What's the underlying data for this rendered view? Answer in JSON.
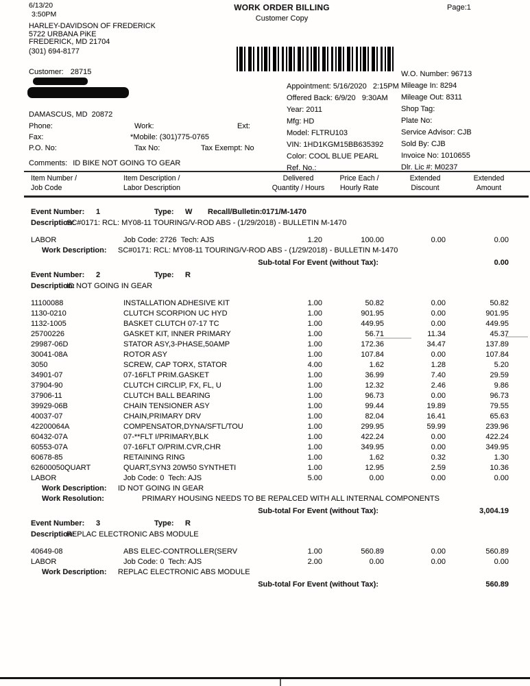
{
  "header": {
    "date": "6/13/20",
    "time": "3:50PM",
    "title": "WORK ORDER BILLING",
    "subtitle": "Customer Copy",
    "page": "Page:1"
  },
  "dealer": {
    "name": "HARLEY-DAVIDSON OF FREDERICK",
    "address": "5722 URBANA PiKE",
    "city": "FREDERICK, MD 21704",
    "phone": "(301) 694-8177"
  },
  "customer": {
    "label": "Customer:",
    "number": "28715",
    "city": "DAMASCUS, MD  20872",
    "phone_label": "Phone:",
    "work_label": "Work:",
    "ext_label": "Ext:",
    "fax_label": "Fax:",
    "mobile": "*Mobile: (301)775-0765",
    "po_label": "P.O. No:",
    "tax_no_label": "Tax No:",
    "tax_exempt": "Tax Exempt: No",
    "comments_label": "Comments:",
    "comments_value": "ID BIKE NOT GOING TO GEAR"
  },
  "wo_info": {
    "left": [
      {
        "label": "Appointment:",
        "value": "5/16/2020   2:15PM"
      },
      {
        "label": "Offered Back:",
        "value": "6/9/20   9:30AM"
      },
      {
        "label": "Year:",
        "value": "2011"
      },
      {
        "label": "Mfg:",
        "value": "HD"
      },
      {
        "label": "Model:",
        "value": "FLTRU103"
      },
      {
        "label": "VIN:",
        "value": "1HD1KGM15BB635392"
      },
      {
        "label": "Color:",
        "value": "COOL BLUE PEARL"
      },
      {
        "label": "Ref. No.:",
        "value": ""
      }
    ],
    "right": [
      {
        "label": "W.O. Number:",
        "value": "96713"
      },
      {
        "label": "Mileage In:",
        "value": "8294"
      },
      {
        "label": "Mileage Out:",
        "value": "8311"
      },
      {
        "label": "Shop Tag:",
        "value": ""
      },
      {
        "label": "Plate No:",
        "value": ""
      },
      {
        "label": "Service Advisor:",
        "value": "CJB"
      },
      {
        "label": "Sold By:",
        "value": "CJB"
      },
      {
        "label": "Invoice No:",
        "value": "1010655"
      },
      {
        "label": "Dlr. Lic #:",
        "value": "M0237"
      }
    ]
  },
  "table": {
    "columns": [
      {
        "line1": "Item Number /",
        "line2": "Job Code"
      },
      {
        "line1": "Item Description /",
        "line2": "Labor Description"
      },
      {
        "line1": "Delivered",
        "line2": "Quantity / Hours"
      },
      {
        "line1": "Price Each /",
        "line2": "Hourly Rate"
      },
      {
        "line1": "Extended",
        "line2": "Discount"
      },
      {
        "line1": "Extended",
        "line2": "Amount"
      }
    ]
  },
  "events": [
    {
      "number_label": "Event Number:",
      "number": "1",
      "type_label": "Type:",
      "type": "W",
      "recall_label": "Recall/Bulletin:",
      "recall": "0171/M-1470",
      "description_label": "Description:",
      "description": "SC#0171: RCL: MY08-11 TOURING/V-ROD ABS - (1/29/2018) - BULLETIN M-1470",
      "rows": [
        {
          "item": "LABOR",
          "desc": "Job Code: 2726  Tech: AJS",
          "qty": "1.20",
          "price": "100.00",
          "disc": "0.00",
          "amt": "0.00"
        }
      ],
      "work_description_label": "Work Description:",
      "work_description": "SC#0171: RCL: MY08-11 TOURING/V-ROD ABS - (1/29/2018) - BULLETIN M-1470",
      "subtotal_label": "Sub-total For Event (without Tax):",
      "subtotal": "0.00"
    },
    {
      "number_label": "Event Number:",
      "number": "2",
      "type_label": "Type:",
      "type": "R",
      "description_label": "Description:",
      "description": "ID NOT GOING IN GEAR",
      "rows": [
        {
          "item": "11100088",
          "desc": "INSTALLATION ADHESIVE KIT",
          "qty": "1.00",
          "price": "50.82",
          "disc": "0.00",
          "amt": "50.82"
        },
        {
          "item": "1130-0210",
          "desc": "CLUTCH SCORPION UC HYD",
          "qty": "1.00",
          "price": "901.95",
          "disc": "0.00",
          "amt": "901.95"
        },
        {
          "item": "1132-1005",
          "desc": "BASKET CLUTCH 07-17 TC",
          "qty": "1.00",
          "price": "449.95",
          "disc": "0.00",
          "amt": "449.95"
        },
        {
          "item": "25700226",
          "desc": "GASKET KIT, INNER PRIMARY",
          "qty": "1.00",
          "price": "56.71",
          "disc": "11.34",
          "amt": "45.37"
        },
        {
          "item": "29987-06D",
          "desc": "STATOR ASY,3-PHASE,50AMP",
          "qty": "1.00",
          "price": "172.36",
          "disc": "34.47",
          "amt": "137.89"
        },
        {
          "item": "30041-08A",
          "desc": "ROTOR ASY",
          "qty": "1.00",
          "price": "107.84",
          "disc": "0.00",
          "amt": "107.84"
        },
        {
          "item": "3050",
          "desc": "SCREW, CAP TORX, STATOR",
          "qty": "4.00",
          "price": "1.62",
          "disc": "1.28",
          "amt": "5.20"
        },
        {
          "item": "34901-07",
          "desc": "07-16FLT PRIM.GASKET",
          "qty": "1.00",
          "price": "36.99",
          "disc": "7.40",
          "amt": "29.59"
        },
        {
          "item": "37904-90",
          "desc": "CLUTCH CIRCLIP, FX, FL, U",
          "qty": "1.00",
          "price": "12.32",
          "disc": "2.46",
          "amt": "9.86"
        },
        {
          "item": "37906-11",
          "desc": "CLUTCH BALL BEARING",
          "qty": "1.00",
          "price": "96.73",
          "disc": "0.00",
          "amt": "96.73"
        },
        {
          "item": "39929-06B",
          "desc": "CHAIN TENSIONER ASY",
          "qty": "1.00",
          "price": "99.44",
          "disc": "19.89",
          "amt": "79.55"
        },
        {
          "item": "40037-07",
          "desc": "CHAIN,PRIMARY DRV",
          "qty": "1.00",
          "price": "82.04",
          "disc": "16.41",
          "amt": "65.63"
        },
        {
          "item": "42200064A",
          "desc": "COMPENSATOR,DYNA/SFTL/TOU",
          "qty": "1.00",
          "price": "299.95",
          "disc": "59.99",
          "amt": "239.96"
        },
        {
          "item": "60432-07A",
          "desc": "07-**FLT I/PRIMARY,BLK",
          "qty": "1.00",
          "price": "422.24",
          "disc": "0.00",
          "amt": "422.24"
        },
        {
          "item": "60553-07A",
          "desc": "07-16FLT O/PRIM.CVR,CHR",
          "qty": "1.00",
          "price": "349.95",
          "disc": "0.00",
          "amt": "349.95"
        },
        {
          "item": "60678-85",
          "desc": "RETAINING RING",
          "qty": "1.00",
          "price": "1.62",
          "disc": "0.32",
          "amt": "1.30"
        },
        {
          "item": "62600050QUART",
          "desc": "QUART,SYN3 20W50 SYNTHETI",
          "qty": "1.00",
          "price": "12.95",
          "disc": "2.59",
          "amt": "10.36"
        },
        {
          "item": "LABOR",
          "desc": "Job Code: 0  Tech: AJS",
          "qty": "5.00",
          "price": "0.00",
          "disc": "0.00",
          "amt": "0.00"
        }
      ],
      "work_description_label": "Work Description:",
      "work_description": "ID NOT GOING IN GEAR",
      "work_resolution_label": "Work Resolution:",
      "work_resolution": "PRIMARY HOUSING NEEDS TO BE REPALCED WITH ALL INTERNAL COMPONENTS",
      "subtotal_label": "Sub-total For Event (without Tax):",
      "subtotal": "3,004.19"
    },
    {
      "number_label": "Event Number:",
      "number": "3",
      "type_label": "Type:",
      "type": "R",
      "description_label": "Description:",
      "description": "REPLAC ELECTRONIC ABS MODULE",
      "rows": [
        {
          "item": "40649-08",
          "desc": "ABS ELEC-CONTROLLER(SERV",
          "qty": "1.00",
          "price": "560.89",
          "disc": "0.00",
          "amt": "560.89"
        },
        {
          "item": "LABOR",
          "desc": "Job Code: 0  Tech: AJS",
          "qty": "2.00",
          "price": "0.00",
          "disc": "0.00",
          "amt": "0.00"
        }
      ],
      "work_description_label": "Work Description:",
      "work_description": "REPLAC ELECTRONIC ABS MODULE",
      "subtotal_label": "Sub-total For Event (without Tax):",
      "subtotal": "560.89"
    }
  ]
}
